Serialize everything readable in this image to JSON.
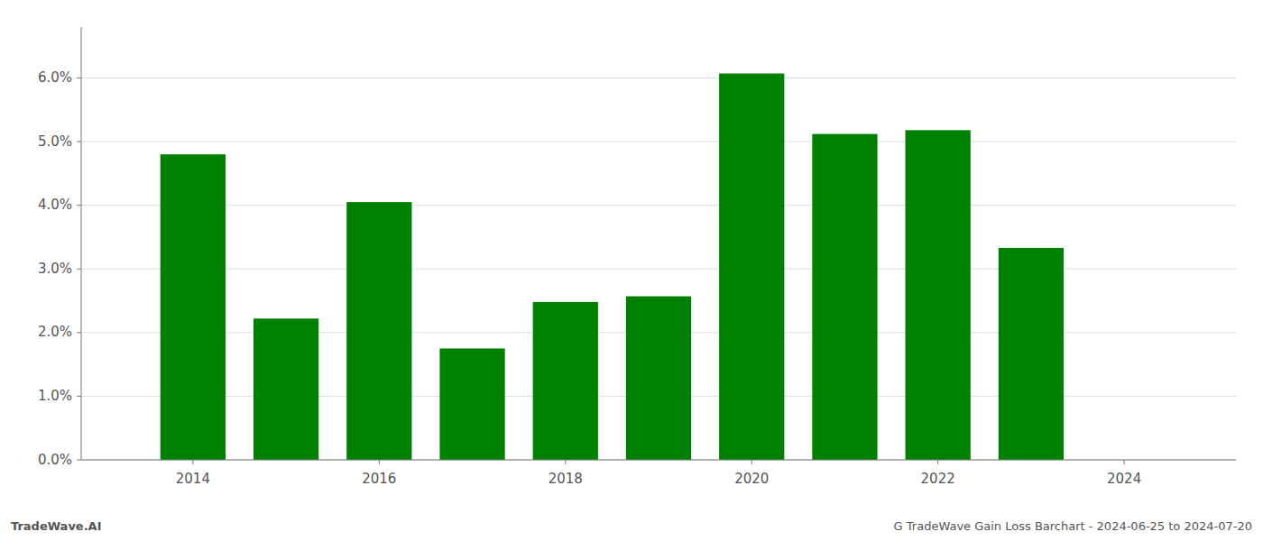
{
  "chart_data": {
    "type": "bar",
    "x": [
      2014,
      2015,
      2016,
      2017,
      2018,
      2019,
      2020,
      2021,
      2022,
      2023
    ],
    "values": [
      0.048,
      0.0222,
      0.0405,
      0.0175,
      0.0248,
      0.0257,
      0.0607,
      0.0512,
      0.0518,
      0.0333
    ],
    "color": "#008000",
    "xlim": [
      2012.8,
      2025.2
    ],
    "xticks": [
      2014,
      2016,
      2018,
      2020,
      2022,
      2024
    ],
    "ylim": [
      0,
      0.068
    ],
    "yticks": [
      {
        "value": 0.0,
        "label": "0.0%"
      },
      {
        "value": 0.01,
        "label": "1.0%"
      },
      {
        "value": 0.02,
        "label": "2.0%"
      },
      {
        "value": 0.03,
        "label": "3.0%"
      },
      {
        "value": 0.04,
        "label": "4.0%"
      },
      {
        "value": 0.05,
        "label": "5.0%"
      },
      {
        "value": 0.06,
        "label": "6.0%"
      }
    ],
    "grid": true,
    "annotations": [
      "TradeWave.AI",
      "G TradeWave Gain Loss Barchart - 2024-06-25 to 2024-07-20"
    ]
  }
}
